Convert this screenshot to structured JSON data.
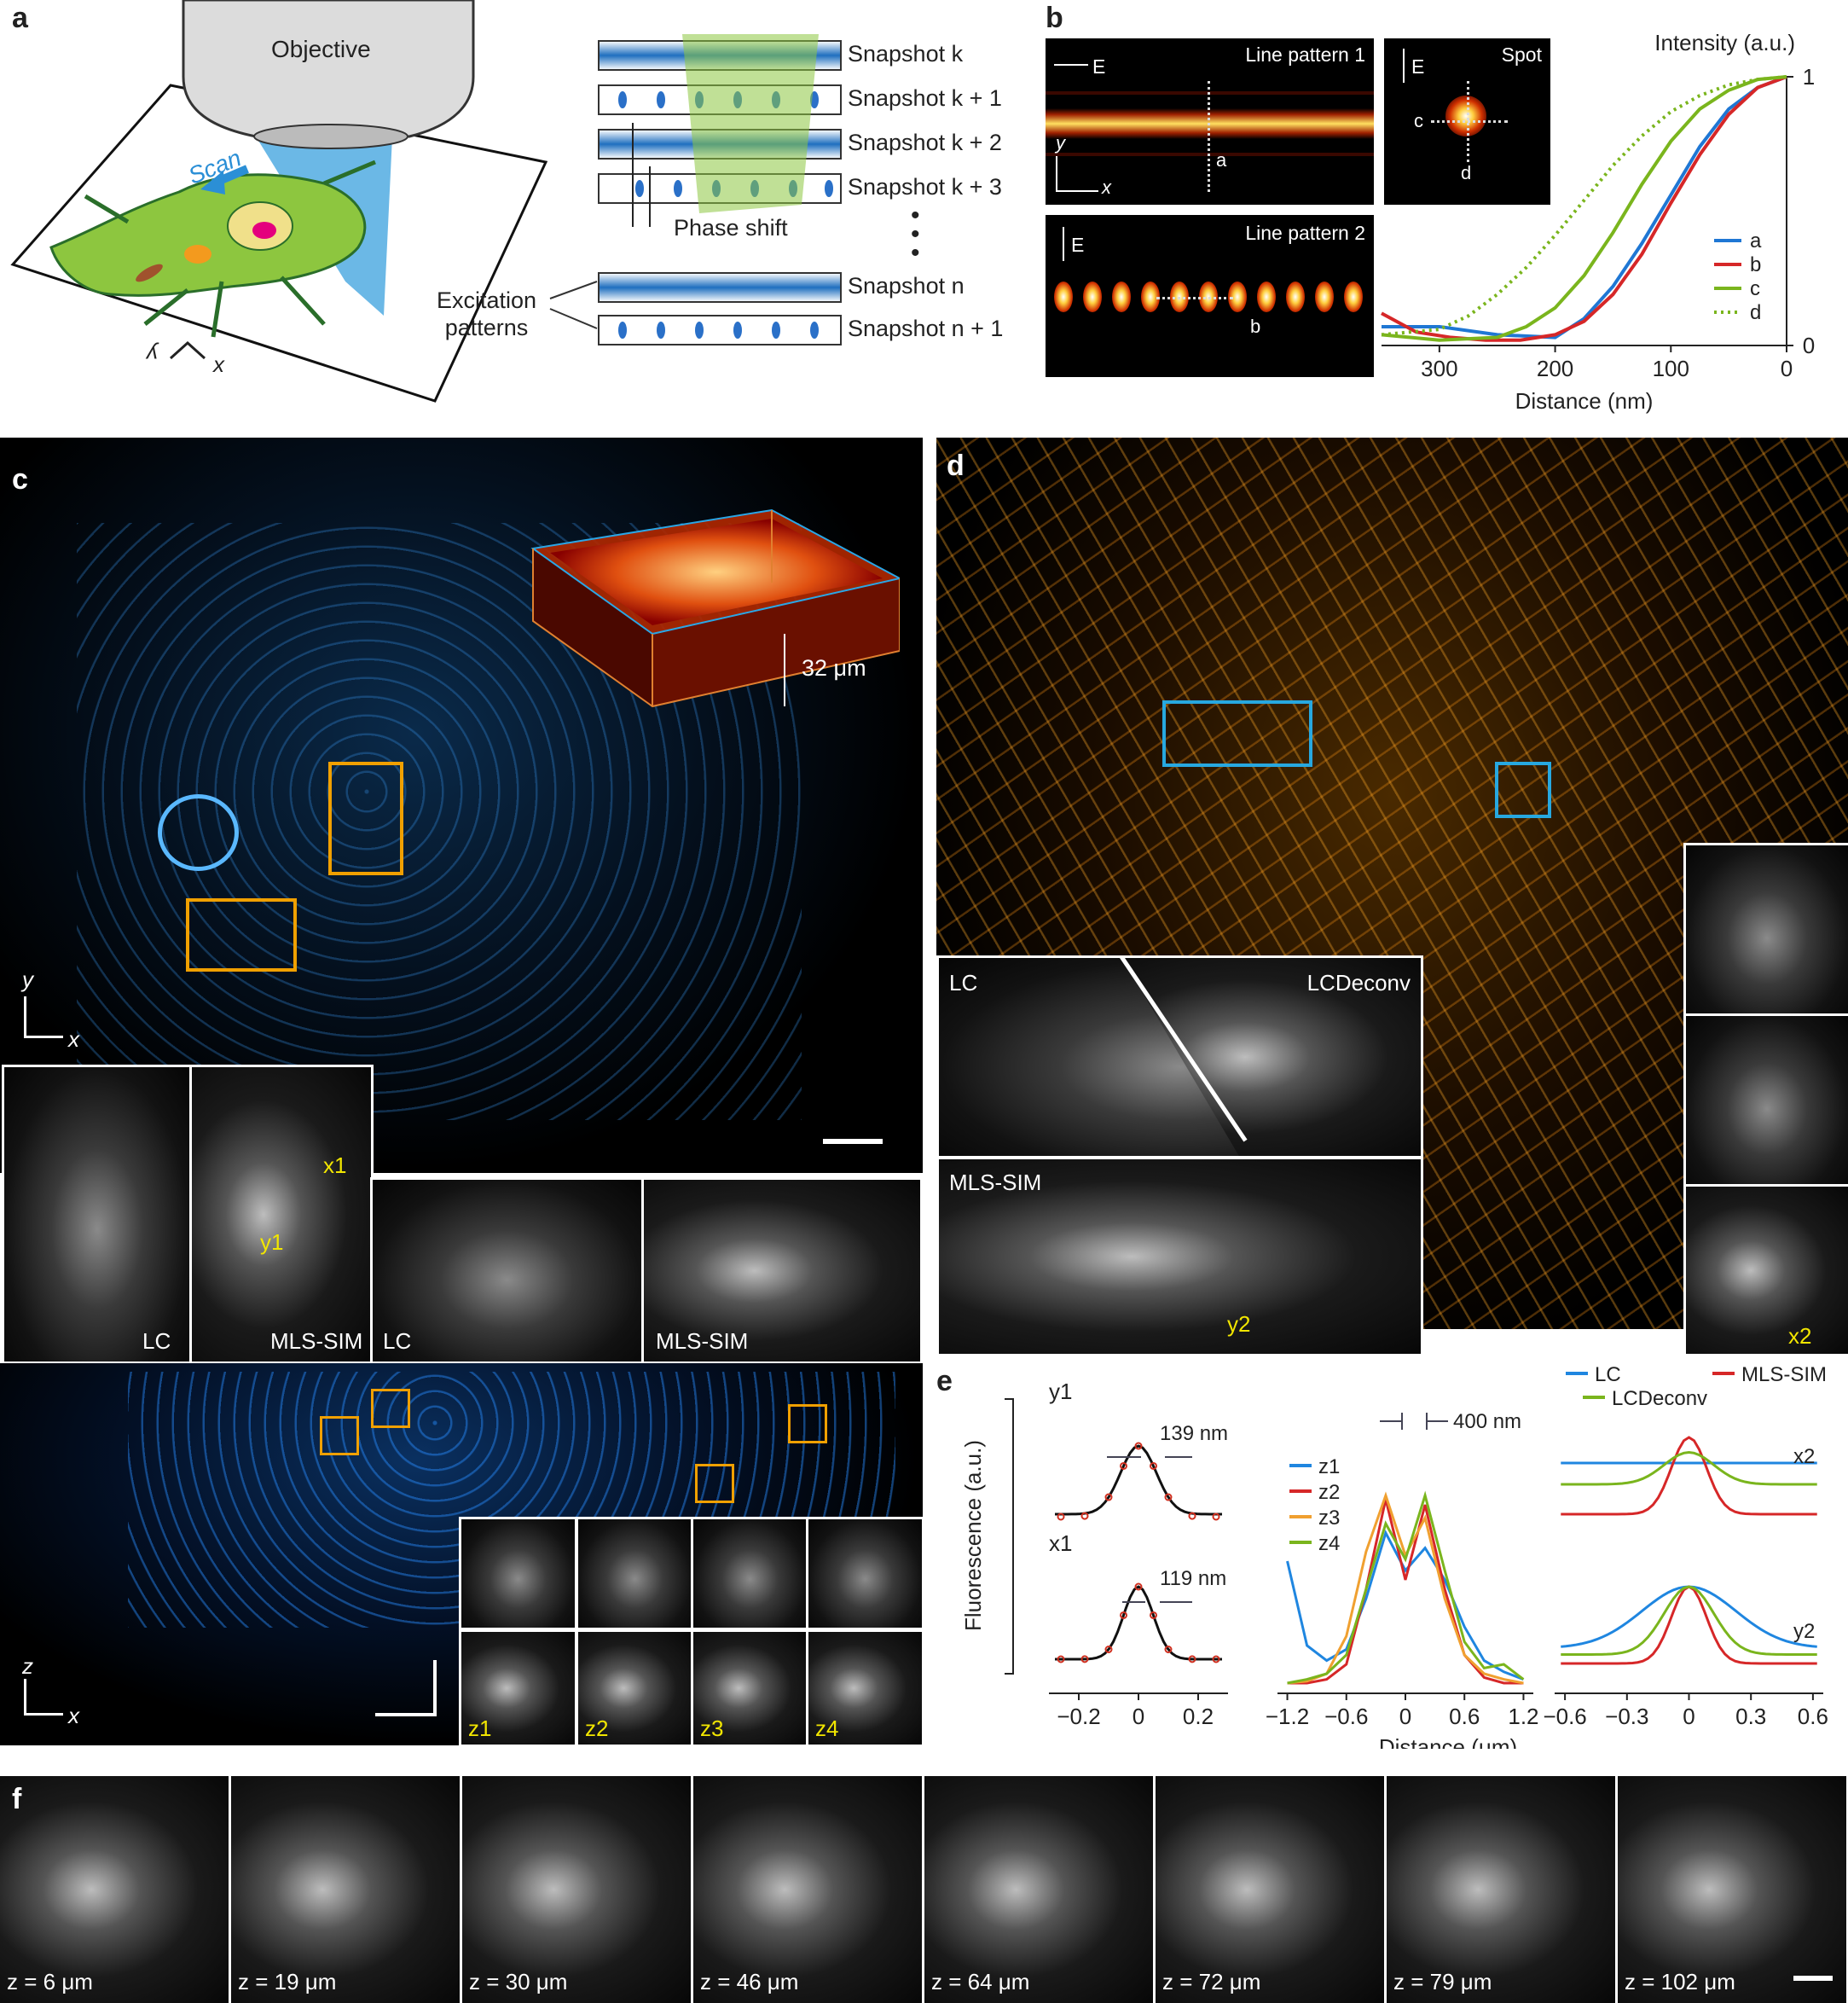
{
  "panel_a": {
    "label": "a",
    "objective": "Objective",
    "scan": "Scan",
    "axis_x": "x",
    "axis_y": "y",
    "snapshots": [
      "Snapshot k",
      "Snapshot k + 1",
      "Snapshot k + 2",
      "Snapshot k + 3",
      "Snapshot n",
      "Snapshot n + 1"
    ],
    "phase_shift": "Phase shift",
    "excitation_patterns": "Excitation\npatterns"
  },
  "panel_b": {
    "label": "b",
    "line_pattern_1": "Line pattern 1",
    "line_pattern_2": "Line pattern 2",
    "spot": "Spot",
    "e_label": "E",
    "axis_x": "x",
    "axis_y": "y",
    "markers": [
      "a",
      "b",
      "c",
      "d"
    ]
  },
  "chart_b": {
    "type": "line",
    "ylabel": "Intensity (a.u.)",
    "xlabel": "Distance (nm)",
    "xlim": [
      350,
      0
    ],
    "ylim": [
      0,
      1
    ],
    "x_ticks": [
      300,
      200,
      100,
      0
    ],
    "y_ticks": [
      0,
      1
    ],
    "series": [
      {
        "name": "a",
        "color": "#1f77d4",
        "style": "solid",
        "x": [
          350,
          300,
          250,
          200,
          175,
          150,
          125,
          100,
          75,
          50,
          25,
          0
        ],
        "y": [
          0.07,
          0.07,
          0.04,
          0.03,
          0.1,
          0.22,
          0.38,
          0.56,
          0.74,
          0.88,
          0.96,
          1.0
        ]
      },
      {
        "name": "b",
        "color": "#d62728",
        "style": "solid",
        "x": [
          350,
          320,
          290,
          260,
          230,
          200,
          175,
          150,
          125,
          100,
          75,
          50,
          25,
          0
        ],
        "y": [
          0.12,
          0.05,
          0.03,
          0.02,
          0.02,
          0.04,
          0.09,
          0.19,
          0.34,
          0.53,
          0.71,
          0.86,
          0.96,
          1.0
        ]
      },
      {
        "name": "c",
        "color": "#7ab51d",
        "style": "solid",
        "x": [
          350,
          300,
          250,
          225,
          200,
          175,
          150,
          125,
          100,
          75,
          50,
          25,
          0
        ],
        "y": [
          0.04,
          0.02,
          0.03,
          0.07,
          0.14,
          0.26,
          0.42,
          0.6,
          0.76,
          0.88,
          0.95,
          0.99,
          1.0
        ]
      },
      {
        "name": "d",
        "color": "#7ab51d",
        "style": "dotted",
        "x": [
          350,
          300,
          275,
          250,
          225,
          200,
          175,
          150,
          125,
          100,
          75,
          50,
          25,
          0
        ],
        "y": [
          0.04,
          0.06,
          0.11,
          0.19,
          0.29,
          0.41,
          0.54,
          0.67,
          0.78,
          0.87,
          0.93,
          0.97,
          0.99,
          1.0
        ]
      }
    ]
  },
  "panel_c": {
    "label": "c",
    "depth": "32 μm",
    "axis_y": "y",
    "axis_x": "x",
    "axis_z": "z",
    "lc": "LC",
    "mls_sim": "MLS-SIM",
    "arrows": [
      "x1",
      "y1"
    ],
    "z_labels": [
      "z1",
      "z2",
      "z3",
      "z4"
    ]
  },
  "panel_d": {
    "label": "d",
    "lc": "LC",
    "lcdeconv": "LCDeconv",
    "mls_sim": "MLS-SIM",
    "arrows": [
      "y2",
      "x2"
    ]
  },
  "panel_e": {
    "label": "e",
    "ylabel": "Fluorescence (a.u.)",
    "xlabel": "Distance (μm)",
    "sub1": {
      "x_ticks": [
        "−0.2",
        "0",
        "0.2"
      ],
      "y1_label": "y1",
      "x1_label": "x1",
      "y1_fwhm": "139 nm",
      "x1_fwhm": "119 nm"
    },
    "sub2": {
      "x_ticks": [
        "−1.2",
        "−0.6",
        "0",
        "0.6",
        "1.2"
      ],
      "annotation": "400 nm",
      "series": [
        {
          "name": "z1",
          "color": "#1f86e0",
          "x": [
            -1.2,
            -1.0,
            -0.8,
            -0.6,
            -0.4,
            -0.2,
            0.0,
            0.2,
            0.4,
            0.6,
            0.8,
            1.0,
            1.2
          ],
          "y": [
            0.65,
            0.2,
            0.12,
            0.18,
            0.45,
            0.8,
            0.6,
            0.72,
            0.55,
            0.3,
            0.12,
            0.06,
            0.02
          ]
        },
        {
          "name": "z2",
          "color": "#d62728",
          "x": [
            -1.2,
            -1.0,
            -0.8,
            -0.6,
            -0.4,
            -0.2,
            0.0,
            0.2,
            0.4,
            0.6,
            0.8,
            1.0,
            1.2
          ],
          "y": [
            0.0,
            0.0,
            0.02,
            0.1,
            0.5,
            0.98,
            0.55,
            0.95,
            0.5,
            0.15,
            0.03,
            0.0,
            0.0
          ]
        },
        {
          "name": "z3",
          "color": "#f0a030",
          "x": [
            -1.2,
            -1.0,
            -0.8,
            -0.6,
            -0.4,
            -0.2,
            0.0,
            0.2,
            0.4,
            0.6,
            0.8,
            1.0,
            1.2
          ],
          "y": [
            0.0,
            0.01,
            0.05,
            0.25,
            0.7,
            1.0,
            0.68,
            0.88,
            0.45,
            0.15,
            0.05,
            0.02,
            0.0
          ]
        },
        {
          "name": "z4",
          "color": "#7ab51d",
          "x": [
            -1.2,
            -1.0,
            -0.8,
            -0.6,
            -0.4,
            -0.2,
            0.0,
            0.2,
            0.4,
            0.6,
            0.8,
            1.0,
            1.2
          ],
          "y": [
            0.0,
            0.02,
            0.05,
            0.15,
            0.5,
            0.85,
            0.66,
            1.0,
            0.6,
            0.22,
            0.08,
            0.1,
            0.02
          ]
        }
      ]
    },
    "sub3": {
      "x_ticks": [
        "−0.6",
        "−0.3",
        "0",
        "0.3",
        "0.6"
      ],
      "profile_labels": [
        "x2",
        "y2"
      ],
      "series": [
        {
          "name": "LC",
          "color": "#1f86e0"
        },
        {
          "name": "MLS-SIM",
          "color": "#d62728"
        },
        {
          "name": "LCDeconv",
          "color": "#7ab51d"
        }
      ]
    }
  },
  "panel_f": {
    "label": "f",
    "z_values": [
      "z = 6 μm",
      "z = 19 μm",
      "z = 30 μm",
      "z = 46 μm",
      "z = 64 μm",
      "z = 72 μm",
      "z = 79 μm",
      "z = 102 μm"
    ]
  }
}
